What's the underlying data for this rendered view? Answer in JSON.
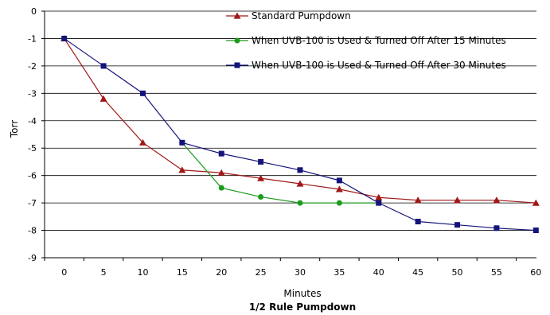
{
  "chart_data": {
    "type": "line",
    "title": "1/2 Rule Pumpdown",
    "xlabel": "Minutes",
    "ylabel": "Torr",
    "x": [
      0,
      5,
      10,
      15,
      20,
      25,
      30,
      35,
      40,
      45,
      50,
      55,
      60
    ],
    "ylim": [
      -9,
      0
    ],
    "yticks": [
      0,
      -1,
      -2,
      -3,
      -4,
      -5,
      -6,
      -7,
      -8,
      -9
    ],
    "grid": true,
    "legend_position": "top-right",
    "series": [
      {
        "name": "Standard Pumpdown",
        "color": "#a01818",
        "marker": "triangle",
        "x": [
          0,
          5,
          10,
          15,
          20,
          25,
          30,
          35,
          40,
          45,
          50,
          55,
          60
        ],
        "values": [
          -1,
          -3.2,
          -4.8,
          -5.8,
          -5.9,
          -6.1,
          -6.3,
          -6.5,
          -6.8,
          -6.9,
          -6.9,
          -6.9,
          -7.0
        ]
      },
      {
        "name": "When UVB-100 is Used & Turned Off After 15 Minutes",
        "color": "#1c9a1c",
        "marker": "circle",
        "x": [
          15,
          20,
          25,
          30,
          35,
          40
        ],
        "values": [
          -4.8,
          -6.45,
          -6.78,
          -7.0,
          -7.0,
          -7.0
        ]
      },
      {
        "name": "When UVB-100 is Used & Turned Off After 30 Minutes",
        "color": "#14147a",
        "marker": "square",
        "x": [
          0,
          5,
          10,
          15,
          20,
          25,
          30,
          35,
          40,
          45,
          50,
          55,
          60
        ],
        "values": [
          -1,
          -2,
          -3,
          -4.8,
          -5.2,
          -5.5,
          -5.8,
          -6.18,
          -7.0,
          -7.68,
          -7.8,
          -7.92,
          -8.0
        ]
      }
    ]
  }
}
